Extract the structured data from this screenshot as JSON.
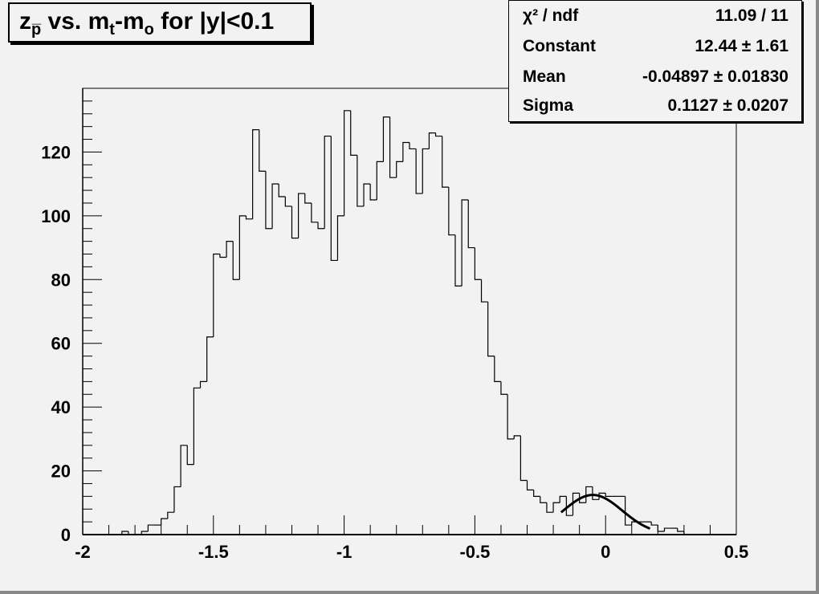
{
  "chart_data": {
    "type": "histogram",
    "title_parts": {
      "main": "z",
      "main_sub": "p̅",
      "mid": " vs. m",
      "mid_sub": "t",
      "dash": "-m",
      "dash_sub": "o",
      "end": " for |y|<0.1"
    },
    "title": "z_p̅ vs. m_t-m_o for |y|<0.1",
    "xlim": [
      -2,
      0.5
    ],
    "ylim": [
      0,
      140
    ],
    "bin_width": 0.025,
    "x_ticks": [
      "-2",
      "-1.5",
      "-1",
      "-0.5",
      "0",
      "0.5"
    ],
    "x_tick_values": [
      -2,
      -1.5,
      -1,
      -0.5,
      0,
      0.5
    ],
    "y_ticks": [
      "0",
      "20",
      "40",
      "60",
      "80",
      "100",
      "120"
    ],
    "y_tick_values": [
      0,
      20,
      40,
      60,
      80,
      100,
      120
    ],
    "values": [
      0,
      0,
      0,
      0,
      0,
      0,
      1,
      0,
      0,
      1,
      3,
      3,
      5,
      7,
      15,
      28,
      22,
      46,
      48,
      62,
      88,
      87,
      92,
      80,
      100,
      99,
      127,
      114,
      96,
      110,
      106,
      103,
      93,
      107,
      104,
      98,
      96,
      125,
      86,
      100,
      133,
      119,
      103,
      110,
      105,
      117,
      131,
      112,
      117,
      123,
      121,
      107,
      121,
      126,
      125,
      109,
      94,
      78,
      105,
      90,
      80,
      73,
      56,
      48,
      44,
      30,
      31,
      17,
      14,
      12,
      10,
      7,
      10,
      12,
      6,
      13,
      10,
      15,
      11,
      13,
      12,
      12,
      12,
      3,
      4,
      4,
      4,
      3,
      1,
      2,
      2,
      1,
      0,
      0,
      0,
      0,
      0,
      0,
      0,
      0
    ],
    "fit": {
      "function": "gaus",
      "constant": 12.44,
      "mean": -0.04897,
      "sigma": 0.1127,
      "range": [
        -0.17,
        0.17
      ]
    },
    "stats": [
      {
        "label": "χ² / ndf",
        "value": "11.09 / 11"
      },
      {
        "label": "Constant",
        "value": "12.44 ± 1.61"
      },
      {
        "label": "Mean",
        "value": "-0.04897 ± 0.01830"
      },
      {
        "label": "Sigma",
        "value": "0.1127 ± 0.0207"
      }
    ],
    "grid": false,
    "legend": "top-right"
  },
  "colors": {
    "background": "#f2f2f2",
    "line": "#000000"
  }
}
